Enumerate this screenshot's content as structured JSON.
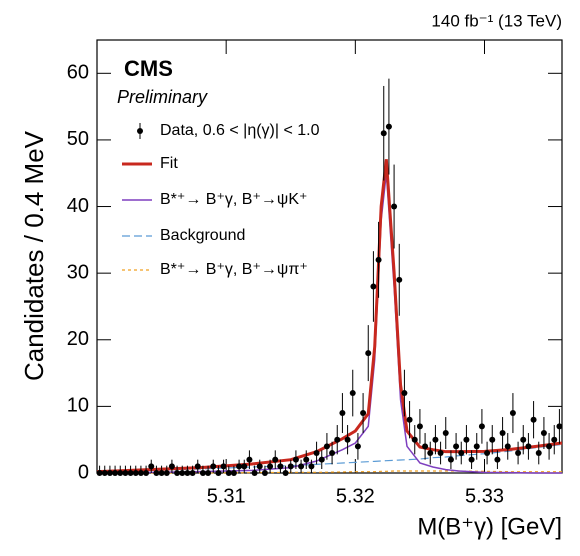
{
  "chart_data": {
    "type": "scatter",
    "luminosity": "140 fb⁻¹ (13 TeV)",
    "experiment": "CMS",
    "status": "Preliminary",
    "x_label": "M(B⁺γ) [GeV]",
    "y_label": "Candidates / 0.4 MeV",
    "xlim": [
      5.3,
      5.336
    ],
    "xticks": [
      5.31,
      5.32,
      5.33
    ],
    "ylim": [
      0,
      65
    ],
    "yticks": [
      0,
      10,
      20,
      30,
      40,
      50,
      60
    ],
    "legend": "top-left",
    "data": {
      "name": "Data, 0.6 < |η(γ)| < 1.0",
      "color": "#000000",
      "x": [
        5.3002,
        5.3006,
        5.301,
        5.3014,
        5.3018,
        5.3022,
        5.3026,
        5.303,
        5.3034,
        5.3038,
        5.3042,
        5.3046,
        5.305,
        5.3054,
        5.3058,
        5.3062,
        5.3066,
        5.307,
        5.3074,
        5.3078,
        5.3082,
        5.3086,
        5.309,
        5.3094,
        5.3098,
        5.3102,
        5.3106,
        5.311,
        5.3114,
        5.3118,
        5.3122,
        5.3126,
        5.313,
        5.3134,
        5.3138,
        5.3142,
        5.3146,
        5.315,
        5.3154,
        5.3158,
        5.3162,
        5.3166,
        5.317,
        5.3174,
        5.3178,
        5.3182,
        5.3186,
        5.319,
        5.3194,
        5.3198,
        5.3202,
        5.3206,
        5.321,
        5.3214,
        5.3218,
        5.3222,
        5.3226,
        5.323,
        5.3234,
        5.3238,
        5.3242,
        5.3246,
        5.325,
        5.3254,
        5.3258,
        5.3262,
        5.3266,
        5.327,
        5.3274,
        5.3278,
        5.3282,
        5.3286,
        5.329,
        5.3294,
        5.3298,
        5.3302,
        5.3306,
        5.331,
        5.3314,
        5.3318,
        5.3322,
        5.3326,
        5.333,
        5.3334,
        5.3338,
        5.3342,
        5.3346,
        5.335,
        5.3354,
        5.3358
      ],
      "values": [
        0,
        0,
        0,
        0,
        0,
        0,
        0,
        0,
        0,
        0,
        1,
        0,
        0,
        0,
        1,
        0,
        0,
        0,
        0,
        1,
        0,
        0,
        1,
        0,
        1,
        0,
        0,
        1,
        1,
        2,
        0,
        1,
        0,
        1,
        2,
        1,
        0,
        1,
        2,
        1,
        2,
        1,
        3,
        2,
        4,
        3,
        5,
        9,
        5,
        12,
        4,
        9,
        18,
        28,
        32,
        51,
        52,
        40,
        29,
        12,
        8,
        5,
        7,
        4,
        3,
        5,
        3,
        6,
        2,
        4,
        3,
        5,
        2,
        4,
        7,
        3,
        5,
        2,
        6,
        4,
        9,
        3,
        5,
        4,
        8,
        3,
        6,
        4,
        5,
        7
      ],
      "errors": [
        1.1,
        1.1,
        1.1,
        1.1,
        1.1,
        1.1,
        1.1,
        1.1,
        1.1,
        1.1,
        1,
        1.1,
        1.1,
        1.1,
        1,
        1.1,
        1.1,
        1.1,
        1.1,
        1,
        1.1,
        1.1,
        1,
        1.1,
        1,
        1.1,
        1.1,
        1,
        1,
        1.4,
        1.1,
        1,
        1.1,
        1,
        1.4,
        1,
        1.1,
        1,
        1.4,
        1,
        1.4,
        1,
        1.7,
        1.4,
        2,
        1.7,
        2.2,
        3,
        2.2,
        3.5,
        2,
        3,
        4.2,
        5.3,
        5.7,
        7.1,
        7.2,
        6.3,
        5.4,
        3.5,
        2.8,
        2.2,
        2.6,
        2,
        1.7,
        2.2,
        1.7,
        2.4,
        1.4,
        2,
        1.7,
        2.2,
        1.4,
        2,
        2.6,
        1.7,
        2.2,
        1.4,
        2.4,
        2,
        3,
        1.7,
        2.2,
        2,
        2.8,
        1.7,
        2.4,
        2,
        2.2,
        2.6
      ]
    },
    "curve_x": [
      5.3,
      5.304,
      5.308,
      5.312,
      5.315,
      5.317,
      5.319,
      5.32,
      5.321,
      5.3215,
      5.322,
      5.3224,
      5.323,
      5.3235,
      5.324,
      5.325,
      5.326,
      5.327,
      5.328,
      5.33,
      5.332,
      5.334,
      5.336
    ],
    "curves": [
      {
        "name": "Background",
        "color": "#5b9bd5",
        "style": "dashed",
        "values": [
          0.2,
          0.4,
          0.6,
          0.9,
          1.1,
          1.3,
          1.5,
          1.6,
          1.7,
          1.75,
          1.8,
          1.85,
          1.9,
          1.95,
          2.0,
          2.1,
          2.3,
          2.4,
          2.6,
          2.9,
          3.3,
          3.8,
          4.3
        ]
      },
      {
        "name": "B*⁺→ B⁺γ, B⁺→ψπ⁺",
        "color": "#f0a020",
        "style": "dotted",
        "values": [
          0,
          0,
          0,
          0.05,
          0.1,
          0.1,
          0.15,
          0.2,
          0.2,
          0.2,
          0.25,
          0.25,
          0.3,
          0.3,
          0.3,
          0.3,
          0.3,
          0.3,
          0.3,
          0.25,
          0.2,
          0.2,
          0.2
        ]
      },
      {
        "name": "B*⁺→ B⁺γ, B⁺→ψK⁺",
        "color": "#7e3fbf",
        "style": "solid",
        "values": [
          0,
          0.1,
          0.2,
          0.4,
          0.8,
          1.8,
          3.5,
          4.5,
          7,
          17,
          38,
          45,
          28,
          11,
          4,
          1.5,
          0.9,
          0.5,
          0.3,
          0.1,
          0.05,
          0,
          0
        ]
      },
      {
        "name": "Fit",
        "color": "#c8281e",
        "style": "thick",
        "values": [
          0.2,
          0.5,
          0.8,
          1.35,
          2.0,
          3.2,
          5.15,
          6.3,
          8.9,
          18.95,
          40.05,
          47.1,
          30.2,
          13.25,
          6.3,
          3.9,
          3.5,
          3.2,
          3.2,
          3.25,
          3.55,
          4.0,
          4.5
        ]
      }
    ],
    "legend_order": [
      3,
      2,
      0,
      1
    ]
  }
}
